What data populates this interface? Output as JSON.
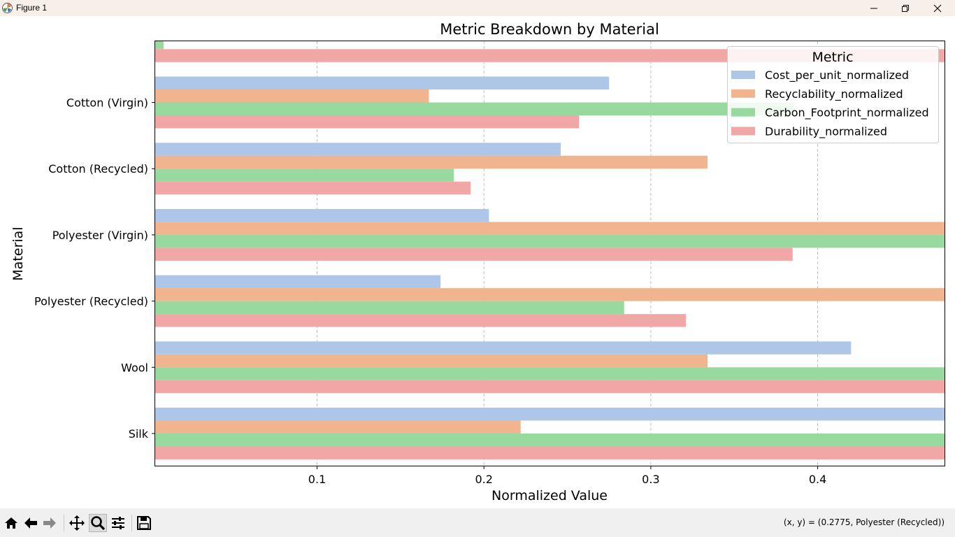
{
  "window": {
    "title": "Figure 1",
    "icons": [
      "matplotlib-icon",
      "minimize-icon",
      "maximize-icon",
      "close-icon"
    ]
  },
  "toolbar": {
    "buttons": [
      "home-icon",
      "back-arrow-icon",
      "forward-arrow-icon",
      "pan-icon",
      "zoom-icon",
      "configure-subplots-icon",
      "save-icon"
    ],
    "active": "zoom-icon",
    "coords": "(x, y) = (0.2775, Polyester (Recycled))"
  },
  "chart_data": {
    "type": "bar",
    "orientation": "horizontal",
    "title": "Metric Breakdown by Material",
    "xlabel": "Normalized Value",
    "ylabel": "Material",
    "xlim": [
      0.003,
      0.476
    ],
    "xticks": [
      0.1,
      0.2,
      0.3,
      0.4
    ],
    "xtick_labels": [
      "0.1",
      "0.2",
      "0.3",
      "0.4"
    ],
    "grid_x": true,
    "categories": [
      "",
      "Cotton (Virgin)",
      "Cotton (Recycled)",
      "Polyester (Virgin)",
      "Polyester (Recycled)",
      "Wool",
      "Silk"
    ],
    "series": [
      {
        "name": "Cost_per_unit_normalized",
        "color": "#aec7e8",
        "values": [
          null,
          0.275,
          0.246,
          0.203,
          0.174,
          0.42,
          0.48
        ]
      },
      {
        "name": "Recyclability_normalized",
        "color": "#f0b58e",
        "values": [
          null,
          0.167,
          0.334,
          0.48,
          0.48,
          0.334,
          0.222
        ]
      },
      {
        "name": "Carbon_Footprint_normalized",
        "color": "#98d9a0",
        "values": [
          0.008,
          0.386,
          0.182,
          0.48,
          0.284,
          0.48,
          0.48
        ]
      },
      {
        "name": "Durability_normalized",
        "color": "#f2a7a7",
        "values": [
          0.48,
          0.257,
          0.192,
          0.385,
          0.321,
          0.48,
          0.48
        ]
      }
    ],
    "legend": {
      "title": "Metric",
      "placement": "top-right"
    }
  }
}
